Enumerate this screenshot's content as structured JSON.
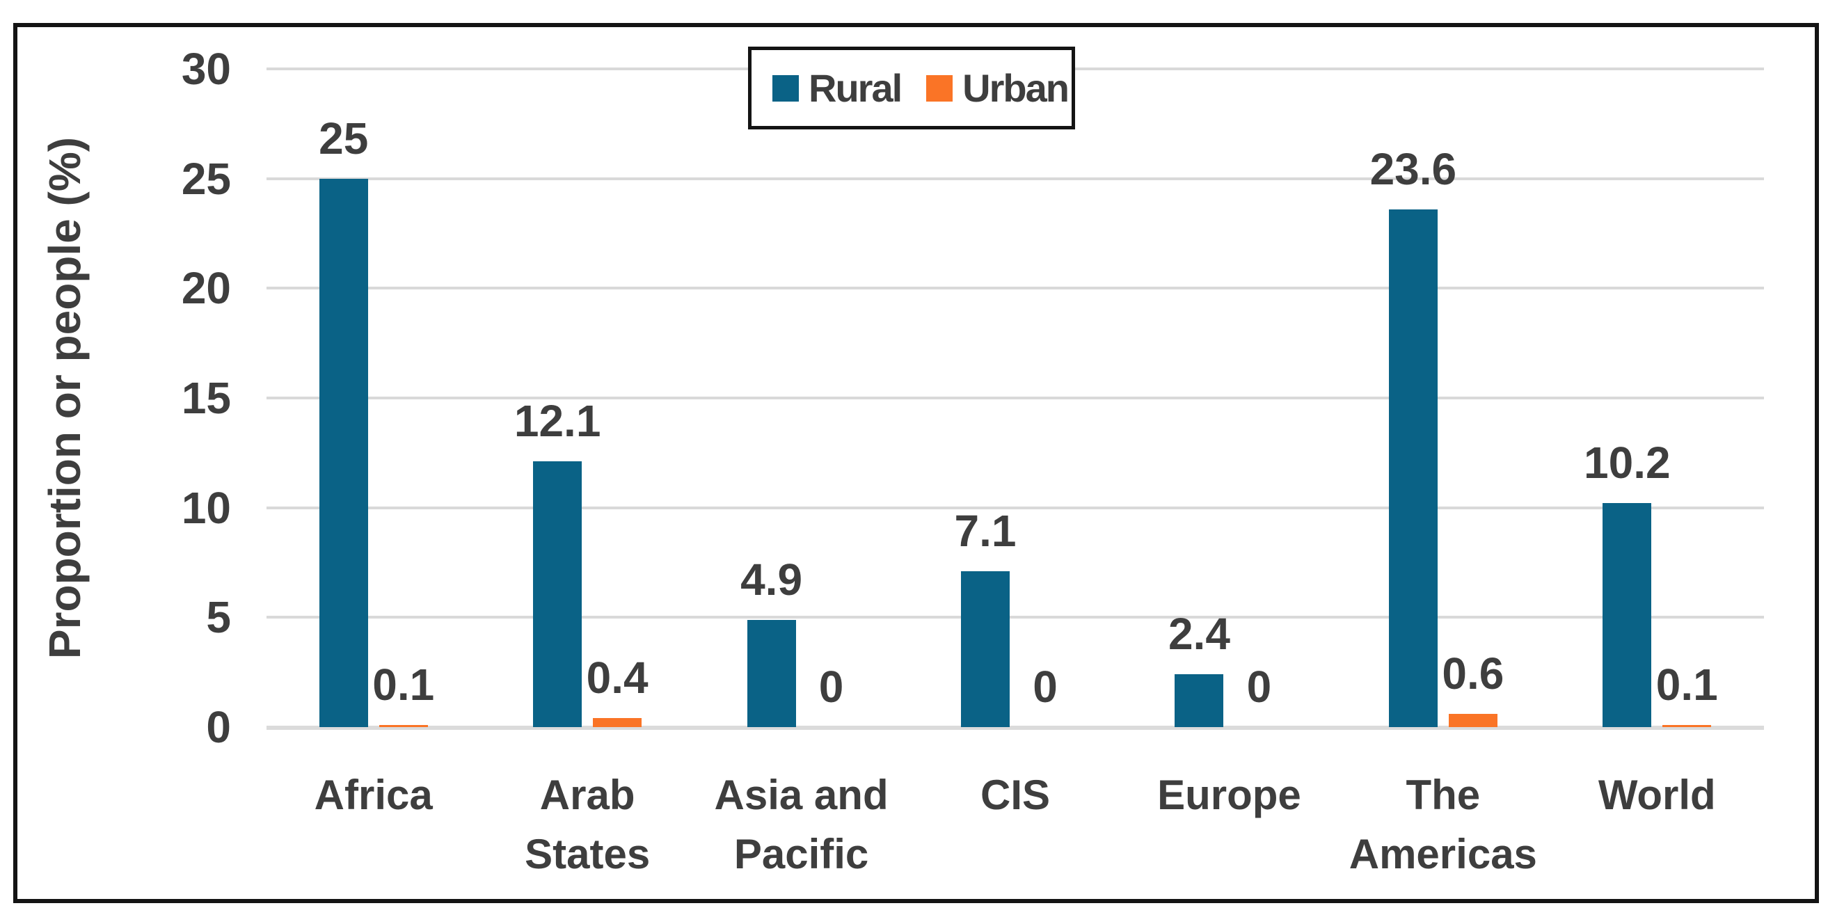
{
  "chart_data": {
    "type": "bar",
    "title": "",
    "categories": [
      "Africa",
      "Arab States",
      "Asia and Pacific",
      "CIS",
      "Europe",
      "The Americas",
      "World"
    ],
    "series": [
      {
        "name": "Rural",
        "color": "#0A6286",
        "values": [
          25,
          12.1,
          4.9,
          7.1,
          2.4,
          23.6,
          10.2
        ],
        "labels": [
          "25",
          "12.1",
          "4.9",
          "7.1",
          "2.4",
          "23.6",
          "10.2"
        ]
      },
      {
        "name": "Urban",
        "color": "#FA7426",
        "values": [
          0.1,
          0.4,
          0,
          0,
          0,
          0.6,
          0.1
        ],
        "labels": [
          "0.1",
          "0.4",
          "0",
          "0",
          "0",
          "0.6",
          "0.1"
        ]
      }
    ],
    "xlabel": "",
    "ylabel": "Proportion or people (%)",
    "yticks": [
      0,
      5,
      10,
      15,
      20,
      25,
      30
    ],
    "ylim": [
      0,
      30
    ],
    "grid": true,
    "legend_position": "top-center"
  },
  "colors": {
    "rural": "#0A6286",
    "urban": "#FA7426",
    "gridline": "#D9D9D9",
    "axis_line": "#DBDBDB",
    "text": "#3E3E3E",
    "border": "#141414",
    "background": "#FFFFFF"
  }
}
